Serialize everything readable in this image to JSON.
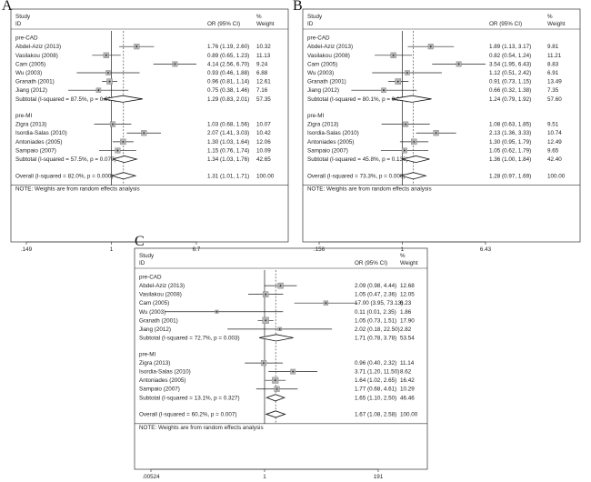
{
  "chart_data": [
    {
      "type": "forest",
      "panel_label": "A",
      "header": {
        "study": "Study",
        "id": "ID",
        "or_ci": "OR (95% CI)",
        "pct": "%",
        "weight": "Weight"
      },
      "axis_ticks": [
        {
          "value": 0.149,
          "label": ".149"
        },
        {
          "value": 1,
          "label": "1"
        },
        {
          "value": 6.7,
          "label": "6.7"
        }
      ],
      "xlim": [
        0.149,
        6.7
      ],
      "log_scale": true,
      "groups": [
        {
          "name": "pre-CAD",
          "studies": [
            {
              "label": "Abdel-Aziz (2013)",
              "or": 1.76,
              "lo": 1.19,
              "hi": 2.6,
              "ci_text": "1.76 (1.19, 2.60)",
              "weight": "10.32"
            },
            {
              "label": "Vasilakou (2008)",
              "or": 0.89,
              "lo": 0.65,
              "hi": 1.23,
              "ci_text": "0.89 (0.65, 1.23)",
              "weight": "11.13"
            },
            {
              "label": "Cam (2005)",
              "or": 4.14,
              "lo": 2.56,
              "hi": 6.7,
              "ci_text": "4.14 (2.56, 6.70)",
              "weight": "9.24"
            },
            {
              "label": "Wu (2003)",
              "or": 0.93,
              "lo": 0.46,
              "hi": 1.88,
              "ci_text": "0.93 (0.46, 1.88)",
              "weight": "6.88"
            },
            {
              "label": "Granath (2001)",
              "or": 0.96,
              "lo": 0.81,
              "hi": 1.14,
              "ci_text": "0.96 (0.81, 1.14)",
              "weight": "12.61"
            },
            {
              "label": "Jiang (2012)",
              "or": 0.75,
              "lo": 0.38,
              "hi": 1.46,
              "ci_text": "0.75 (0.38, 1.46)",
              "weight": "7.16"
            }
          ],
          "subtotal": {
            "label": "Subtotal  (I-squared = 87.5%, p = 0.000)",
            "or": 1.29,
            "lo": 0.83,
            "hi": 2.01,
            "ci_text": "1.29 (0.83, 2.01)",
            "weight": "57.35"
          }
        },
        {
          "name": "pre-MI",
          "studies": [
            {
              "label": "Zigra (2013)",
              "or": 1.03,
              "lo": 0.68,
              "hi": 1.56,
              "ci_text": "1.03 (0.68, 1.56)",
              "weight": "10.07"
            },
            {
              "label": "Isordia-Salas (2010)",
              "or": 2.07,
              "lo": 1.41,
              "hi": 3.03,
              "ci_text": "2.07 (1.41, 3.03)",
              "weight": "10.42"
            },
            {
              "label": "Antoniades (2005)",
              "or": 1.3,
              "lo": 1.03,
              "hi": 1.64,
              "ci_text": "1.30 (1.03, 1.64)",
              "weight": "12.06"
            },
            {
              "label": "Sampaio (2007)",
              "or": 1.15,
              "lo": 0.76,
              "hi": 1.74,
              "ci_text": "1.15 (0.76, 1.74)",
              "weight": "10.09"
            }
          ],
          "subtotal": {
            "label": "Subtotal  (I-squared = 57.5%, p = 0.070)",
            "or": 1.34,
            "lo": 1.03,
            "hi": 1.76,
            "ci_text": "1.34 (1.03, 1.76)",
            "weight": "42.65"
          }
        }
      ],
      "overall": {
        "label": "Overall  (I-squared = 82.0%, p = 0.000)",
        "or": 1.31,
        "lo": 1.01,
        "hi": 1.71,
        "ci_text": "1.31 (1.01, 1.71)",
        "weight": "100.00"
      },
      "note": "NOTE: Weights are from random effects analysis"
    },
    {
      "type": "forest",
      "panel_label": "B",
      "header": {
        "study": "Study",
        "id": "ID",
        "or_ci": "OR (95% CI)",
        "pct": "%",
        "weight": "Weight"
      },
      "axis_ticks": [
        {
          "value": 0.156,
          "label": ".156"
        },
        {
          "value": 1,
          "label": "1"
        },
        {
          "value": 6.43,
          "label": "6.43"
        }
      ],
      "xlim": [
        0.156,
        6.43
      ],
      "log_scale": true,
      "groups": [
        {
          "name": "pre-CAD",
          "studies": [
            {
              "label": "Abdel-Aziz (2013)",
              "or": 1.89,
              "lo": 1.13,
              "hi": 3.17,
              "ci_text": "1.89 (1.13, 3.17)",
              "weight": "9.81"
            },
            {
              "label": "Vasilakou (2008)",
              "or": 0.82,
              "lo": 0.54,
              "hi": 1.24,
              "ci_text": "0.82 (0.54, 1.24)",
              "weight": "11.21"
            },
            {
              "label": "Cam (2005)",
              "or": 3.54,
              "lo": 1.95,
              "hi": 6.43,
              "ci_text": "3.54 (1.95, 6.43)",
              "weight": "8.83"
            },
            {
              "label": "Wu (2003)",
              "or": 1.12,
              "lo": 0.51,
              "hi": 2.42,
              "ci_text": "1.12 (0.51, 2.42)",
              "weight": "6.91"
            },
            {
              "label": "Granath (2001)",
              "or": 0.91,
              "lo": 0.73,
              "hi": 1.15,
              "ci_text": "0.91 (0.73, 1.15)",
              "weight": "13.49"
            },
            {
              "label": "Jiang (2012)",
              "or": 0.66,
              "lo": 0.32,
              "hi": 1.38,
              "ci_text": "0.66 (0.32, 1.38)",
              "weight": "7.35"
            }
          ],
          "subtotal": {
            "label": "Subtotal  (I-squared = 80.1%, p = 0.000)",
            "or": 1.24,
            "lo": 0.79,
            "hi": 1.92,
            "ci_text": "1.24 (0.79, 1.92)",
            "weight": "57.60"
          }
        },
        {
          "name": "pre-MI",
          "studies": [
            {
              "label": "Zigra (2013)",
              "or": 1.08,
              "lo": 0.63,
              "hi": 1.85,
              "ci_text": "1.08 (0.63, 1.85)",
              "weight": "9.51"
            },
            {
              "label": "Isordia-Salas (2010)",
              "or": 2.13,
              "lo": 1.36,
              "hi": 3.33,
              "ci_text": "2.13 (1.36, 3.33)",
              "weight": "10.74"
            },
            {
              "label": "Antoniades (2005)",
              "or": 1.3,
              "lo": 0.95,
              "hi": 1.79,
              "ci_text": "1.30 (0.95, 1.79)",
              "weight": "12.49"
            },
            {
              "label": "Sampaio (2007)",
              "or": 1.05,
              "lo": 0.62,
              "hi": 1.79,
              "ci_text": "1.05 (0.62, 1.79)",
              "weight": "9.65"
            }
          ],
          "subtotal": {
            "label": "Subtotal  (I-squared = 45.8%, p = 0.136)",
            "or": 1.36,
            "lo": 1.0,
            "hi": 1.84,
            "ci_text": "1.36 (1.00, 1.84)",
            "weight": "42.40"
          }
        }
      ],
      "overall": {
        "label": "Overall  (I-squared = 73.3%, p = 0.000)",
        "or": 1.28,
        "lo": 0.97,
        "hi": 1.69,
        "ci_text": "1.28 (0.97, 1.69)",
        "weight": "100.00"
      },
      "note": "NOTE: Weights are from random effects analysis"
    },
    {
      "type": "forest",
      "panel_label": "C",
      "header": {
        "study": "Study",
        "id": "ID",
        "or_ci": "OR (95% CI)",
        "pct": "%",
        "weight": "Weight"
      },
      "axis_ticks": [
        {
          "value": 0.00524,
          "label": ".00524"
        },
        {
          "value": 1,
          "label": "1"
        },
        {
          "value": 191,
          "label": "191"
        }
      ],
      "xlim": [
        0.00524,
        191
      ],
      "log_scale": true,
      "groups": [
        {
          "name": "pre-CAD",
          "studies": [
            {
              "label": "Abdel-Aziz (2013)",
              "or": 2.09,
              "lo": 0.98,
              "hi": 4.44,
              "ci_text": "2.09 (0.98, 4.44)",
              "weight": "12.68"
            },
            {
              "label": "Vasilakou (2008)",
              "or": 1.05,
              "lo": 0.47,
              "hi": 2.36,
              "ci_text": "1.05 (0.47, 2.36)",
              "weight": "12.05"
            },
            {
              "label": "Cam (2005)",
              "or": 17.0,
              "lo": 3.95,
              "hi": 73.13,
              "ci_text": "17.00 (3.95, 73.13)",
              "weight": "6.23"
            },
            {
              "label": "Wu (2003)",
              "or": 0.11,
              "lo": 0.01,
              "hi": 2.35,
              "ci_text": "0.11 (0.01, 2.35)",
              "weight": "1.86"
            },
            {
              "label": "Granath (2001)",
              "or": 1.05,
              "lo": 0.73,
              "hi": 1.51,
              "ci_text": "1.05 (0.73, 1.51)",
              "weight": "17.90"
            },
            {
              "label": "Jiang (2012)",
              "or": 2.02,
              "lo": 0.18,
              "hi": 22.5,
              "ci_text": "2.02 (0.18, 22.50)",
              "weight": "2.82"
            }
          ],
          "subtotal": {
            "label": "Subtotal  (I-squared = 72.7%, p = 0.003)",
            "or": 1.71,
            "lo": 0.78,
            "hi": 3.78,
            "ci_text": "1.71 (0.78, 3.78)",
            "weight": "53.54"
          }
        },
        {
          "name": "pre-MI",
          "studies": [
            {
              "label": "Zigra (2013)",
              "or": 0.96,
              "lo": 0.4,
              "hi": 2.32,
              "ci_text": "0.96 (0.40, 2.32)",
              "weight": "11.14"
            },
            {
              "label": "Isordia-Salas (2010)",
              "or": 3.71,
              "lo": 1.2,
              "hi": 11.5,
              "ci_text": "3.71 (1.20, 11.50)",
              "weight": "8.62"
            },
            {
              "label": "Antoniades (2005)",
              "or": 1.64,
              "lo": 1.02,
              "hi": 2.65,
              "ci_text": "1.64 (1.02, 2.65)",
              "weight": "16.42"
            },
            {
              "label": "Sampaio (2007)",
              "or": 1.77,
              "lo": 0.68,
              "hi": 4.61,
              "ci_text": "1.77 (0.68, 4.61)",
              "weight": "10.29"
            }
          ],
          "subtotal": {
            "label": "Subtotal  (I-squared = 13.1%, p = 0.327)",
            "or": 1.65,
            "lo": 1.1,
            "hi": 2.5,
            "ci_text": "1.65 (1.10, 2.50)",
            "weight": "46.46"
          }
        }
      ],
      "overall": {
        "label": "Overall  (I-squared = 60.2%, p = 0.007)",
        "or": 1.67,
        "lo": 1.08,
        "hi": 2.58,
        "ci_text": "1.67 (1.08, 2.58)",
        "weight": "100.00"
      },
      "note": "NOTE: Weights are from random effects analysis"
    }
  ]
}
